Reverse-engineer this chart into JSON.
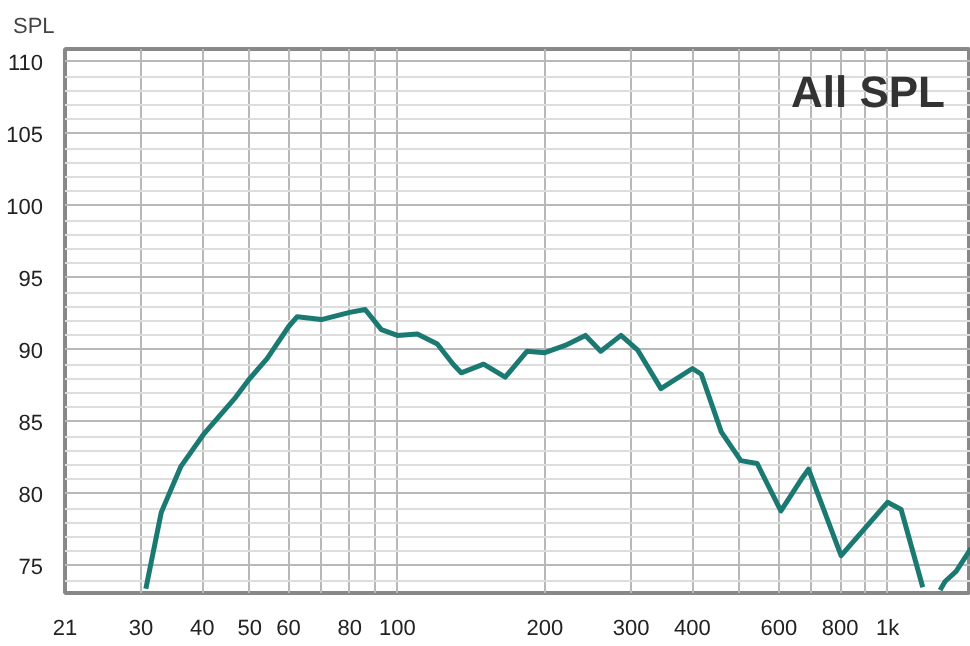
{
  "chart_data": {
    "type": "line",
    "title": "All SPL",
    "ylabel": "SPL",
    "log": "x",
    "grid": true,
    "line_style": "solid",
    "xlim": [
      21,
      1480
    ],
    "ylim": [
      73.1,
      110.9
    ],
    "xticks": [
      21,
      30,
      40,
      50,
      60,
      {
        "value": 70,
        "label": null
      },
      80,
      {
        "value": 90,
        "label": null
      },
      100,
      200,
      300,
      400,
      {
        "value": 500,
        "label": null
      },
      600,
      {
        "value": 700,
        "label": null
      },
      800,
      {
        "value": 900,
        "label": null
      },
      {
        "value": 1000,
        "label": "1k"
      }
    ],
    "yticks": [
      75,
      80,
      85,
      90,
      95,
      100,
      105,
      110
    ],
    "series": [
      {
        "color": "#1a7a72",
        "x": [
          30.7,
          33,
          36.2,
          40.2,
          46.8,
          50,
          54.3,
          60,
          62.5,
          70,
          80,
          86,
          92.8,
          100,
          109.9,
          120.7,
          130,
          135,
          150,
          166,
          184,
          200,
          220,
          242,
          260,
          286,
          309,
          345,
          400,
          417,
          458,
          502,
          542,
          606,
          667,
          690,
          804,
          889,
          1000,
          1066,
          1180,
          1230,
          1280,
          1310,
          1380,
          1480
        ],
        "values": [
          73.4,
          78.7,
          81.9,
          84.1,
          86.7,
          88.0,
          89.4,
          91.6,
          92.3,
          92.1,
          92.6,
          92.8,
          91.4,
          91.0,
          91.1,
          90.4,
          89.0,
          88.4,
          89.0,
          88.1,
          89.9,
          89.8,
          90.3,
          91.0,
          89.9,
          91.0,
          90.0,
          87.3,
          88.7,
          88.3,
          84.3,
          82.3,
          82.1,
          78.8,
          81.0,
          81.7,
          75.7,
          77.4,
          79.4,
          78.9,
          73.5,
          null,
          73.3,
          73.9,
          74.6,
          76.2
        ]
      }
    ]
  }
}
